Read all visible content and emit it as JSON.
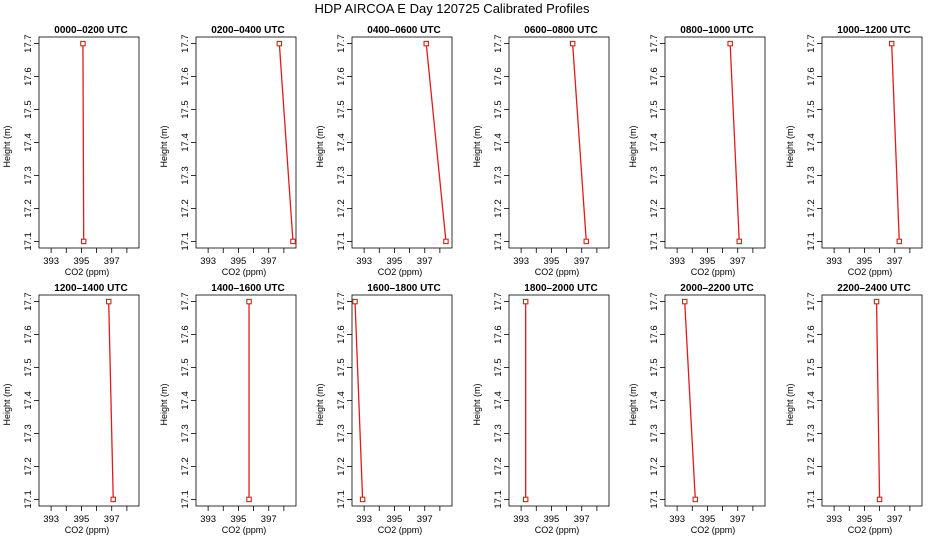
{
  "title": "HDP AIRCOA E  Day 120725  Calibrated Profiles",
  "chart_data": {
    "type": "line",
    "title": "HDP AIRCOA E  Day 120725  Calibrated Profiles",
    "xlabel": "CO2 (ppm)",
    "ylabel": "Height (m)",
    "xlim": [
      392.2,
      398.8
    ],
    "ylim": [
      17.08,
      17.72
    ],
    "x_ticks": [
      393,
      394,
      395,
      396,
      397,
      398
    ],
    "x_tick_labels": [
      "393",
      "",
      "395",
      "",
      "397",
      ""
    ],
    "y_ticks": [
      17.1,
      17.2,
      17.3,
      17.4,
      17.5,
      17.6,
      17.7
    ],
    "y_tick_labels": [
      "17.1",
      "17.2",
      "17.3",
      "17.4",
      "17.5",
      "17.6",
      "17.7"
    ],
    "grid": false,
    "series_color": "#e31a1c",
    "panels": [
      {
        "title": "0000–0200 UTC",
        "points": [
          {
            "x": 395.1,
            "y": 17.7
          },
          {
            "x": 395.15,
            "y": 17.1
          }
        ]
      },
      {
        "title": "0200–0400 UTC",
        "points": [
          {
            "x": 397.7,
            "y": 17.7
          },
          {
            "x": 398.6,
            "y": 17.1
          }
        ]
      },
      {
        "title": "0400–0600 UTC",
        "points": [
          {
            "x": 397.1,
            "y": 17.7
          },
          {
            "x": 398.4,
            "y": 17.1
          }
        ]
      },
      {
        "title": "0600–0800 UTC",
        "points": [
          {
            "x": 396.4,
            "y": 17.7
          },
          {
            "x": 397.3,
            "y": 17.1
          }
        ]
      },
      {
        "title": "0800–1000 UTC",
        "points": [
          {
            "x": 396.5,
            "y": 17.7
          },
          {
            "x": 397.1,
            "y": 17.1
          }
        ]
      },
      {
        "title": "1000–1200 UTC",
        "points": [
          {
            "x": 396.8,
            "y": 17.7
          },
          {
            "x": 397.3,
            "y": 17.1
          }
        ]
      },
      {
        "title": "1200–1400 UTC",
        "points": [
          {
            "x": 396.8,
            "y": 17.7
          },
          {
            "x": 397.1,
            "y": 17.1
          }
        ]
      },
      {
        "title": "1400–1600 UTC",
        "points": [
          {
            "x": 395.7,
            "y": 17.7
          },
          {
            "x": 395.7,
            "y": 17.1
          }
        ]
      },
      {
        "title": "1600–1800 UTC",
        "points": [
          {
            "x": 392.4,
            "y": 17.7
          },
          {
            "x": 392.9,
            "y": 17.1
          }
        ]
      },
      {
        "title": "1800–2000 UTC",
        "points": [
          {
            "x": 393.3,
            "y": 17.7
          },
          {
            "x": 393.3,
            "y": 17.1
          }
        ]
      },
      {
        "title": "2000–2200 UTC",
        "points": [
          {
            "x": 393.5,
            "y": 17.7
          },
          {
            "x": 394.2,
            "y": 17.1
          }
        ]
      },
      {
        "title": "2200–2400 UTC",
        "points": [
          {
            "x": 395.8,
            "y": 17.7
          },
          {
            "x": 396.0,
            "y": 17.1
          }
        ]
      }
    ]
  }
}
